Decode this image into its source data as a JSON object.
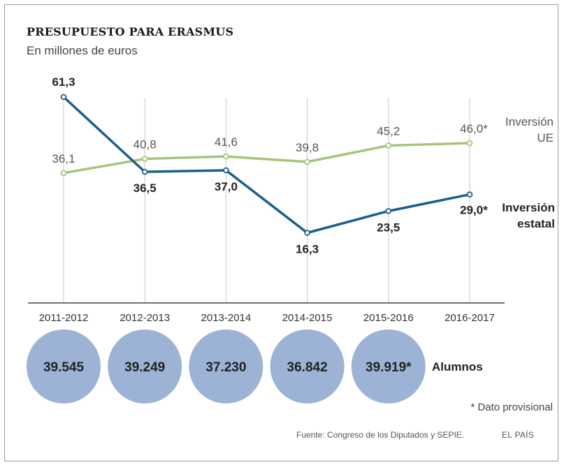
{
  "chart_data": {
    "type": "line",
    "title": "PRESUPUESTO PARA ERASMUS",
    "subtitle": "En millones de euros",
    "categories": [
      "2011-2012",
      "2012-2013",
      "2013-2014",
      "2014-2015",
      "2015-2016",
      "2016-2017"
    ],
    "series": [
      {
        "name": "Inversión UE",
        "values": [
          36.1,
          40.8,
          41.6,
          39.8,
          45.2,
          46.0
        ],
        "labels": [
          "36,1",
          "40,8",
          "41,6",
          "39,8",
          "45,2",
          "46,0*"
        ],
        "color": "#a8c47c"
      },
      {
        "name": "Inversión estatal",
        "values": [
          61.3,
          36.5,
          37.0,
          16.3,
          23.5,
          29.0
        ],
        "labels": [
          "61,3",
          "36,5",
          "37,0",
          "16,3",
          "23,5",
          "29,0*"
        ],
        "color": "#1b5e8c"
      }
    ],
    "students": {
      "label": "Alumnos",
      "values": [
        "39.545",
        "39.249",
        "37.230",
        "36.842",
        "39.919*"
      ],
      "color": "#9cb3d6"
    },
    "ylim": [
      0,
      70
    ],
    "grid": "vertical",
    "legend": "right"
  },
  "footnote": "* Dato provisional",
  "source": "Fuente: Congreso de los Diputados y SEPIE.",
  "brand": "EL PAÍS"
}
